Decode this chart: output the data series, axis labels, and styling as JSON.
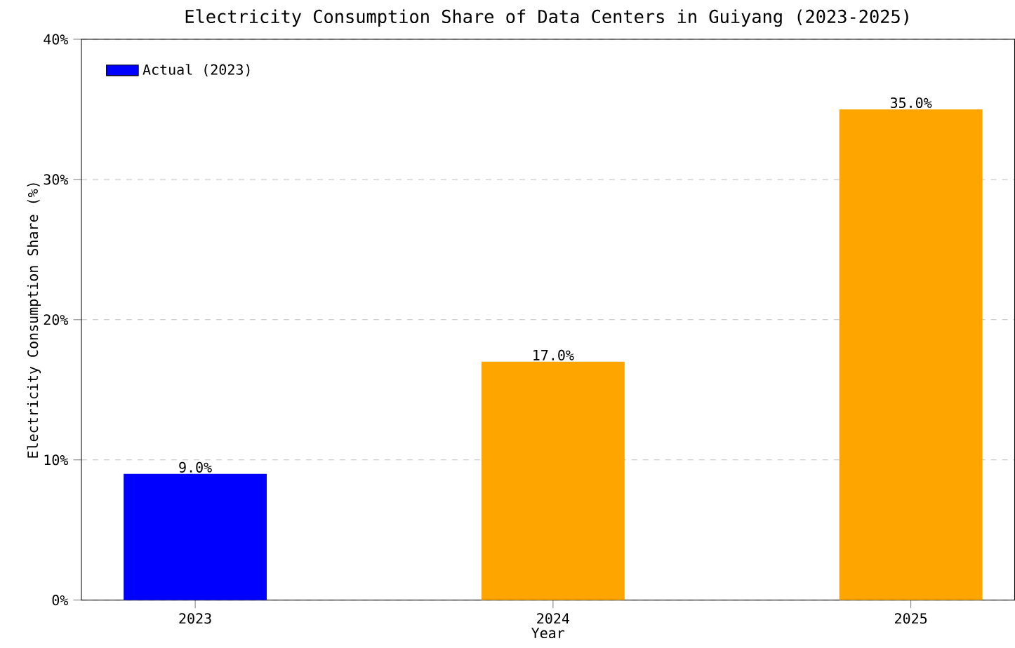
{
  "chart_data": {
    "type": "bar",
    "title": "Electricity Consumption Share of Data Centers in Guiyang (2023-2025)",
    "xlabel": "Year",
    "ylabel": "Electricity Consumption Share (%)",
    "categories": [
      "2023",
      "2024",
      "2025"
    ],
    "series": [
      {
        "name": "Actual (2023)",
        "color": "#0000ff",
        "values": [
          9,
          null,
          null
        ],
        "value_labels": [
          "9.0%",
          null,
          null
        ]
      },
      {
        "color": "#ffa500",
        "values": [
          null,
          17,
          35
        ],
        "value_labels": [
          null,
          "17.0%",
          "35.0%"
        ]
      }
    ],
    "ylim": [
      0,
      40
    ],
    "yticks": [
      {
        "value": 0,
        "label": "0%"
      },
      {
        "value": 10,
        "label": "10%"
      },
      {
        "value": 20,
        "label": "20%"
      },
      {
        "value": 30,
        "label": "30%"
      },
      {
        "value": 40,
        "label": "40%"
      }
    ],
    "grid": "y",
    "legend": "top left"
  }
}
